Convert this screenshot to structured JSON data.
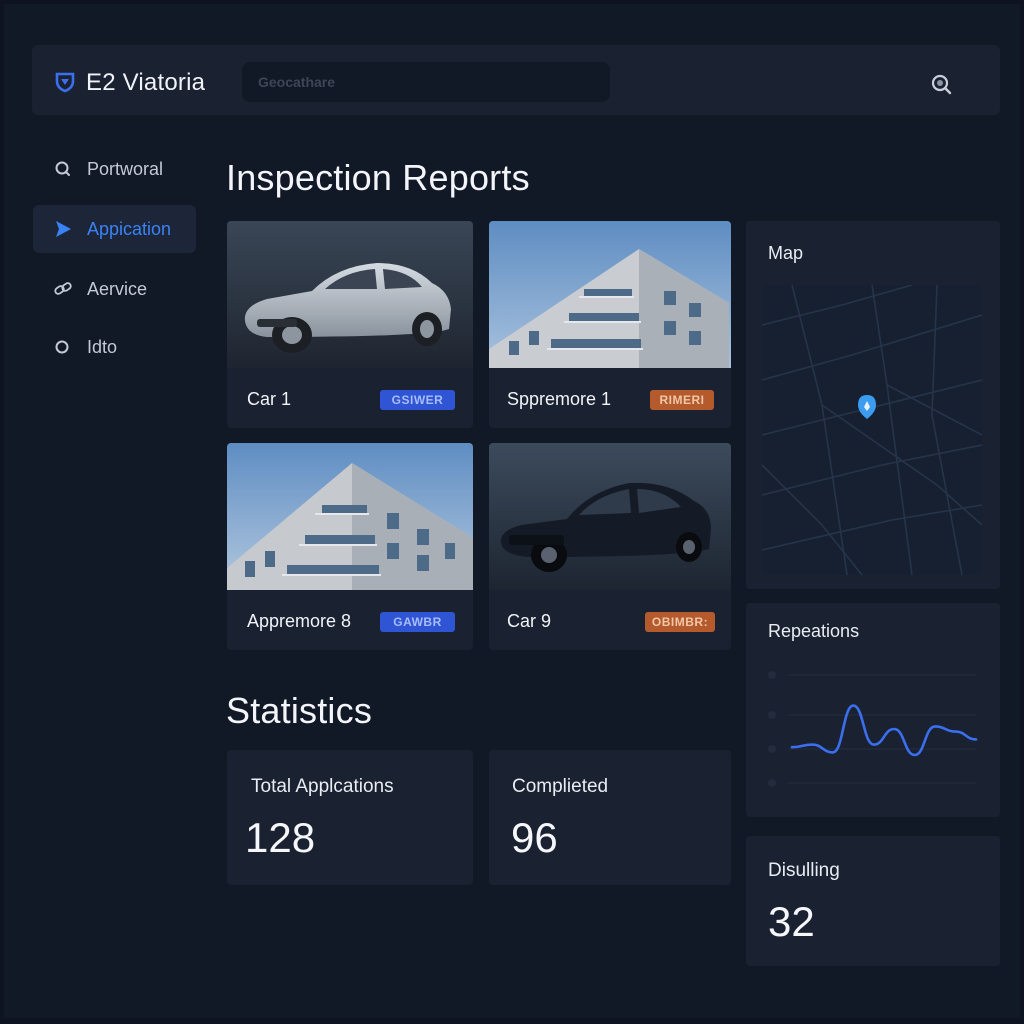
{
  "header": {
    "app_title": "E2 Viatoria",
    "search_placeholder": "Geocathare"
  },
  "sidebar": {
    "items": [
      {
        "label": "Portworal",
        "icon": "search-icon",
        "active": false
      },
      {
        "label": "Appication",
        "icon": "play-icon",
        "active": true
      },
      {
        "label": "Aervice",
        "icon": "link-icon",
        "active": false
      },
      {
        "label": "Idto",
        "icon": "circle-icon",
        "active": false
      }
    ]
  },
  "reports": {
    "heading": "Inspection Reports",
    "cards": [
      {
        "name": "Car 1",
        "badge": "GSIWER",
        "badge_color": "#2f55d4",
        "image": "silver-car"
      },
      {
        "name": "Sppremore 1",
        "badge": "RIMERI",
        "badge_color": "#b55a2c",
        "image": "building"
      },
      {
        "name": "Appremore 8",
        "badge": "GAWBR",
        "badge_color": "#2f55d4",
        "image": "building"
      },
      {
        "name": "Car 9",
        "badge": "OBIMBR:",
        "badge_color": "#b55a2c",
        "image": "dark-car"
      }
    ]
  },
  "map_panel": {
    "title": "Map",
    "pin_color": "#3b9cf0"
  },
  "repeations_panel": {
    "title": "Repeations",
    "line_color": "#3b6ff0",
    "series_points": [
      0.15,
      0.2,
      0.05,
      0.95,
      0.2,
      0.5,
      0.0,
      0.55,
      0.45,
      0.3
    ]
  },
  "statistics": {
    "heading": "Statistics",
    "total_label": "Total Applcations",
    "total_value": "128",
    "completed_label": "Complieted",
    "completed_value": "96",
    "disulling_label": "Disulling",
    "disulling_value": "32"
  },
  "colors": {
    "background": "#111826",
    "panel": "#1a2130",
    "accent": "#3b82f6"
  }
}
